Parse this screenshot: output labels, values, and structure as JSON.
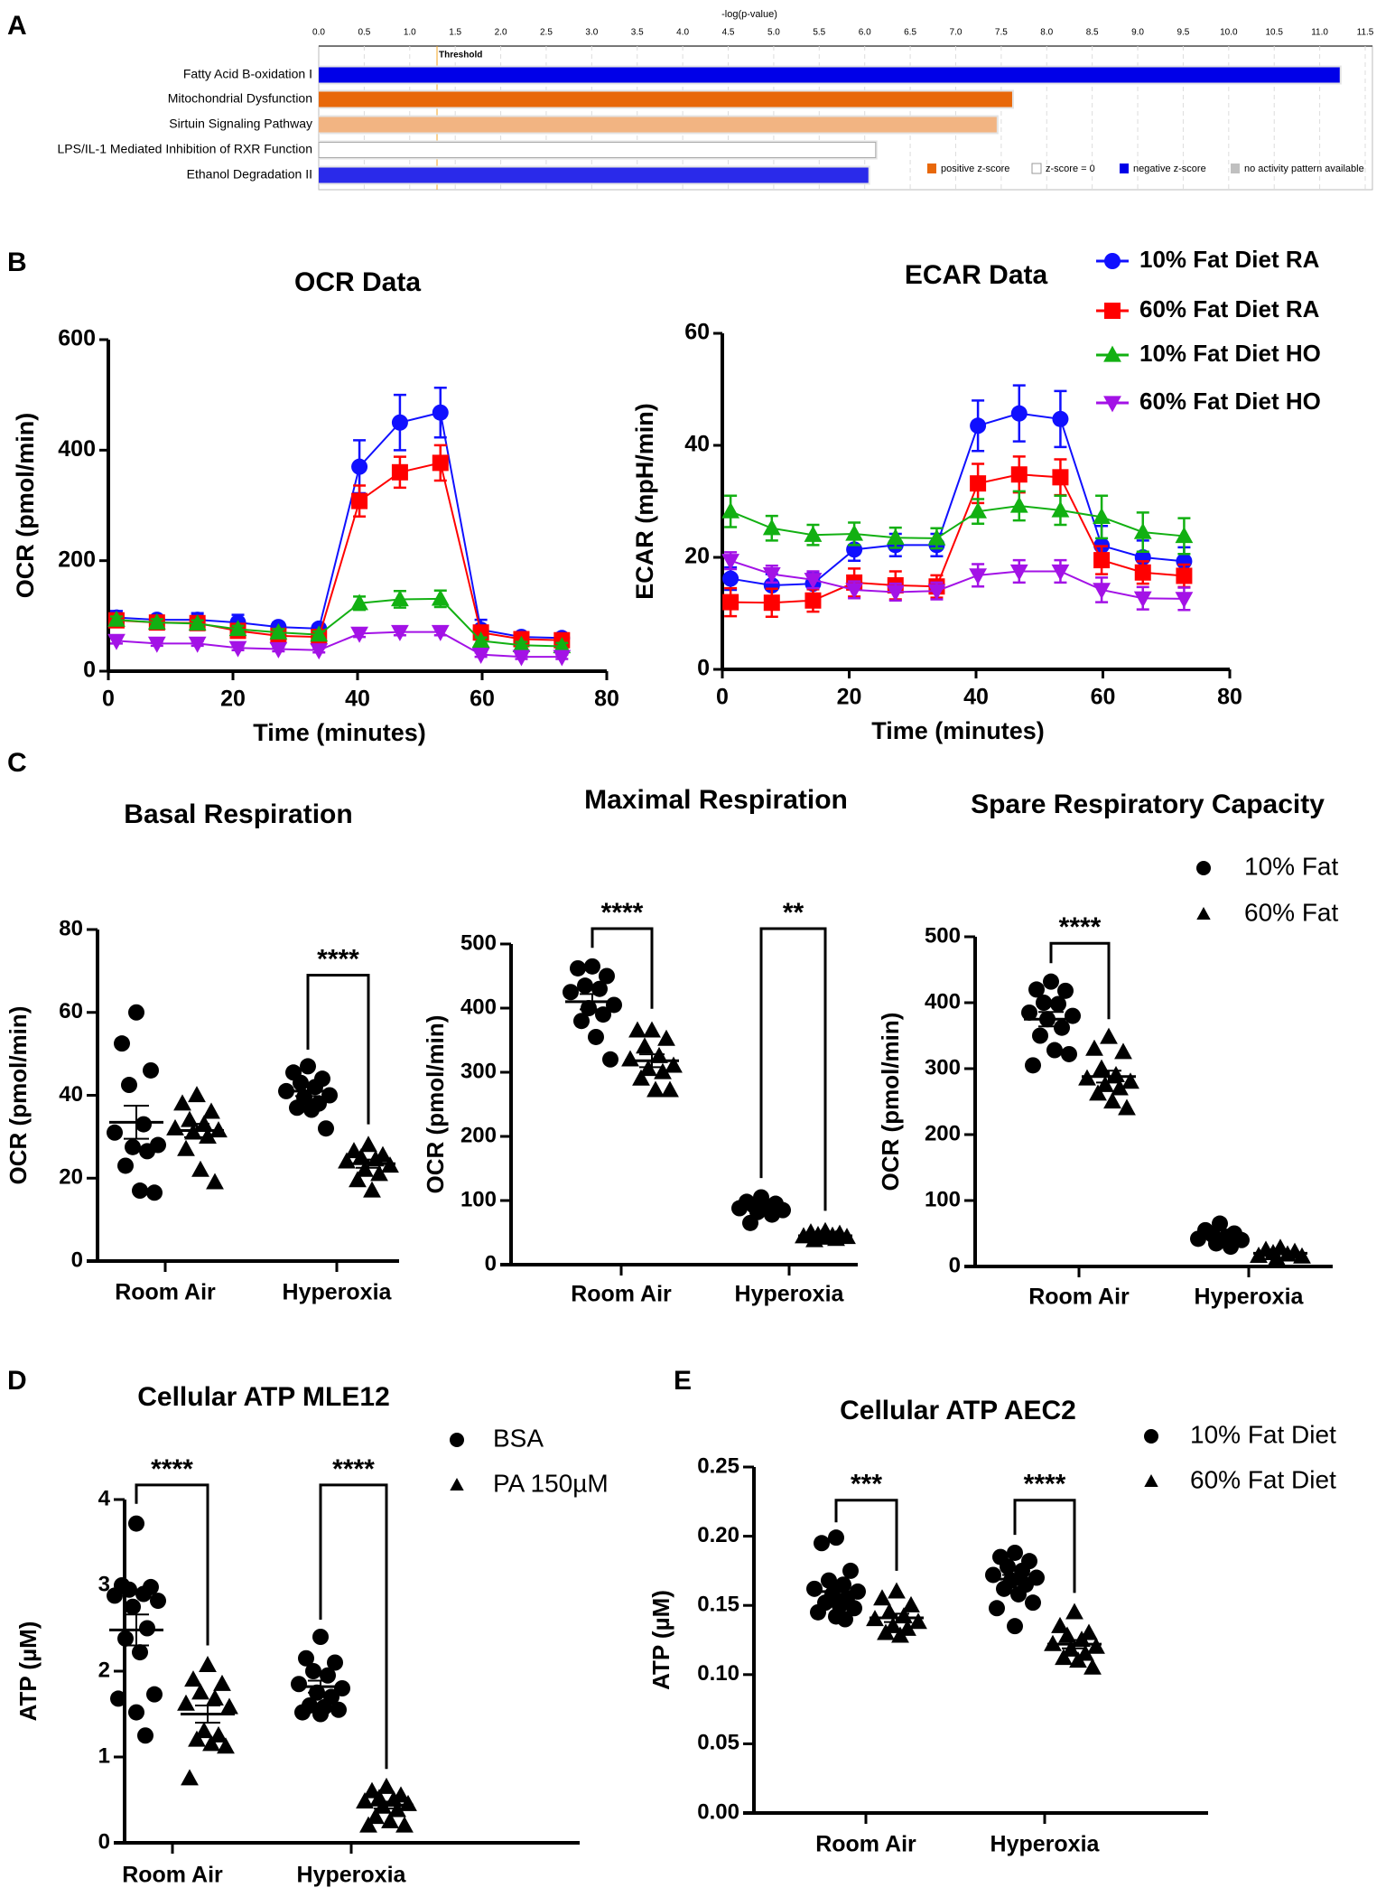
{
  "figure": {
    "panel_labels": [
      "A",
      "B",
      "C",
      "D",
      "E"
    ]
  },
  "chart_data": [
    {
      "id": "A",
      "type": "bar",
      "orientation": "horizontal",
      "xlabel": "-log(p-value)",
      "xlim": [
        0,
        11.5
      ],
      "xticks": [
        "0.0",
        "0.5",
        "1.0",
        "1.5",
        "2.0",
        "2.5",
        "3.0",
        "3.5",
        "4.0",
        "4.5",
        "5.0",
        "5.5",
        "6.0",
        "6.5",
        "7.0",
        "7.5",
        "8.0",
        "8.5",
        "9.0",
        "9.5",
        "10.0",
        "10.5",
        "11.0",
        "11.5"
      ],
      "threshold": {
        "label": "Threshold",
        "value": 1.3,
        "color": "#f5a623"
      },
      "categories": [
        "Fatty Acid B-oxidation I",
        "Mitochondrial Dysfunction",
        "Sirtuin Signaling Pathway",
        "LPS/IL-1 Mediated Inhibition of RXR Function",
        "Ethanol Degradation II"
      ],
      "values": [
        11.22,
        7.62,
        7.45,
        6.12,
        6.04
      ],
      "bar_colors": [
        "#0000e8",
        "#e8680a",
        "#f2b482",
        "#ffffff",
        "#2a2aea"
      ],
      "grid": true,
      "legend": [
        {
          "label": "positive z-score",
          "color": "#e8680a"
        },
        {
          "label": "z-score = 0",
          "color": "#ffffff"
        },
        {
          "label": "negative z-score",
          "color": "#0000e8"
        },
        {
          "label": "no activity pattern available",
          "color": "#c0c0c0"
        }
      ]
    },
    {
      "id": "B-OCR",
      "type": "line",
      "title": "OCR Data",
      "xlabel": "Time (minutes)",
      "ylabel": "OCR (pmol/min)",
      "xlim": [
        0,
        80
      ],
      "ylim": [
        0,
        600
      ],
      "xticks": [
        "0",
        "20",
        "40",
        "60",
        "80"
      ],
      "yticks": [
        "0",
        "200",
        "400",
        "600"
      ],
      "x": [
        1.3,
        7.8,
        14.3,
        20.8,
        27.3,
        33.8,
        40.3,
        46.8,
        53.3,
        59.8,
        66.3,
        72.8
      ],
      "series": [
        {
          "name": "10% Fat Diet RA",
          "color": "#1010ff",
          "marker": "circle",
          "values": [
            97,
            93,
            93,
            88,
            80,
            77,
            370,
            450,
            468,
            75,
            62,
            60
          ],
          "err": [
            12,
            8,
            12,
            14,
            8,
            6,
            48,
            50,
            45,
            18,
            8,
            6
          ]
        },
        {
          "name": "60% Fat Diet RA",
          "color": "#ff0000",
          "marker": "square",
          "values": [
            92,
            88,
            87,
            73,
            64,
            62,
            308,
            360,
            377,
            70,
            58,
            56
          ],
          "err": [
            8,
            6,
            8,
            8,
            8,
            8,
            28,
            28,
            32,
            12,
            6,
            6
          ]
        },
        {
          "name": "10% Fat Diet HO",
          "color": "#12b012",
          "marker": "triangle-up",
          "values": [
            93,
            88,
            86,
            76,
            70,
            66,
            123,
            130,
            131,
            55,
            47,
            45
          ],
          "err": [
            6,
            6,
            6,
            6,
            6,
            6,
            12,
            15,
            15,
            6,
            6,
            6
          ]
        },
        {
          "name": "60% Fat Diet HO",
          "color": "#a312e6",
          "marker": "triangle-down",
          "values": [
            55,
            50,
            50,
            42,
            40,
            38,
            68,
            71,
            71,
            30,
            26,
            26
          ],
          "err": [
            5,
            4,
            4,
            4,
            4,
            4,
            6,
            6,
            6,
            4,
            4,
            4
          ]
        }
      ]
    },
    {
      "id": "B-ECAR",
      "type": "line",
      "title": "ECAR Data",
      "xlabel": "Time (minutes)",
      "ylabel": "ECAR (mpH/min)",
      "xlim": [
        0,
        80
      ],
      "ylim": [
        0,
        60
      ],
      "xticks": [
        "0",
        "20",
        "40",
        "60",
        "80"
      ],
      "yticks": [
        "0",
        "20",
        "40",
        "60"
      ],
      "legend_position": "top-right",
      "x": [
        1.3,
        7.8,
        14.3,
        20.8,
        27.3,
        33.8,
        40.3,
        46.8,
        53.3,
        59.8,
        66.3,
        72.8
      ],
      "series": [
        {
          "name": "10% Fat Diet RA",
          "color": "#1010ff",
          "marker": "circle",
          "values": [
            16.2,
            15.0,
            15.3,
            21.4,
            22.2,
            22.2,
            43.5,
            45.7,
            44.7,
            22.1,
            20.0,
            19.3
          ],
          "err": [
            2,
            2,
            2,
            2,
            2,
            2,
            4.5,
            5,
            5,
            3.5,
            3,
            2.5
          ]
        },
        {
          "name": "60% Fat Diet RA",
          "color": "#ff0000",
          "marker": "square",
          "values": [
            12.0,
            11.9,
            12.3,
            15.5,
            15.0,
            14.8,
            33.2,
            34.8,
            34.3,
            19.5,
            17.3,
            16.7
          ],
          "err": [
            2.5,
            2.5,
            2,
            2.5,
            2.5,
            2,
            3.5,
            3.2,
            3.2,
            2.5,
            2,
            2
          ]
        },
        {
          "name": "10% Fat Diet HO",
          "color": "#12b012",
          "marker": "triangle-up",
          "values": [
            28.2,
            25.2,
            24.0,
            24.2,
            23.5,
            23.4,
            28.2,
            29.2,
            28.4,
            27.2,
            24.5,
            23.8
          ],
          "err": [
            2.8,
            2.2,
            1.8,
            2,
            1.8,
            1.8,
            2.2,
            2.6,
            2.6,
            3.8,
            3.5,
            3.2
          ]
        },
        {
          "name": "60% Fat Diet HO",
          "color": "#a312e6",
          "marker": "triangle-down",
          "values": [
            19.4,
            17.0,
            16.0,
            14.2,
            13.8,
            14.0,
            16.8,
            17.5,
            17.5,
            14.2,
            12.7,
            12.6
          ],
          "err": [
            1.5,
            1.5,
            1.5,
            1.5,
            1.5,
            1.5,
            2,
            2,
            2,
            2.2,
            2,
            2
          ]
        }
      ]
    },
    {
      "id": "C-basal",
      "type": "scatter",
      "title": "Basal Respiration",
      "ylabel": "OCR (pmol/min)",
      "ylim": [
        0,
        80
      ],
      "yticks": [
        "0",
        "20",
        "40",
        "60",
        "80"
      ],
      "categories": [
        "Room Air",
        "Hyperoxia"
      ],
      "show_legend": false,
      "significance": [
        "****"
      ],
      "series": [
        {
          "name": "10% Fat",
          "marker": "circle",
          "groups": [
            {
              "values": [
                60,
                52.5,
                46,
                42.5,
                33,
                31,
                28,
                27.5,
                26.5,
                23,
                17,
                16.5
              ],
              "mean": 33.5,
              "sem": 4
            },
            {
              "values": [
                47,
                45.5,
                44,
                43,
                42,
                41,
                40,
                39.5,
                38,
                37,
                36.5,
                32
              ],
              "mean": 41,
              "sem": 1.2
            }
          ]
        },
        {
          "name": "60% Fat",
          "marker": "triangle",
          "groups": [
            {
              "values": [
                40,
                38,
                36,
                34,
                33,
                32,
                31.5,
                31,
                30,
                27,
                22,
                19
              ],
              "mean": 31.5,
              "sem": 1.6
            },
            {
              "values": [
                28,
                26.5,
                25.5,
                25,
                24.5,
                24,
                23,
                22,
                21,
                19.5,
                17
              ],
              "mean": 23.5,
              "sem": 1
            }
          ]
        }
      ]
    },
    {
      "id": "C-maximal",
      "type": "scatter",
      "title": "Maximal Respiration",
      "ylabel": "OCR (pmol/min)",
      "ylim": [
        0,
        500
      ],
      "yticks": [
        "0",
        "100",
        "200",
        "300",
        "400",
        "500"
      ],
      "categories": [
        "Room Air",
        "Hyperoxia"
      ],
      "show_legend": false,
      "significance": [
        "****",
        "**"
      ],
      "series": [
        {
          "name": "10% Fat",
          "marker": "circle",
          "groups": [
            {
              "values": [
                465,
                462,
                450,
                435,
                430,
                425,
                405,
                400,
                390,
                380,
                355,
                320
              ],
              "mean": 410,
              "sem": 12
            },
            {
              "values": [
                105,
                98,
                95,
                92,
                90,
                88,
                85,
                82,
                78,
                65
              ],
              "mean": 88,
              "sem": 4
            }
          ]
        },
        {
          "name": "60% Fat",
          "marker": "triangle",
          "groups": [
            {
              "values": [
                365,
                365,
                352,
                340,
                325,
                320,
                310,
                305,
                300,
                290,
                272,
                272
              ],
              "mean": 318,
              "sem": 10
            },
            {
              "values": [
                52,
                50,
                48,
                46,
                45,
                44,
                43,
                42,
                40,
                38
              ],
              "mean": 45,
              "sem": 1.5
            }
          ]
        }
      ]
    },
    {
      "id": "C-spare",
      "type": "scatter",
      "title": "Spare Respiratory Capacity",
      "ylabel": "OCR (pmol/min)",
      "ylim": [
        0,
        500
      ],
      "yticks": [
        "0",
        "100",
        "200",
        "300",
        "400",
        "500"
      ],
      "categories": [
        "Room Air",
        "Hyperoxia"
      ],
      "show_legend": true,
      "legend_position": "top-right",
      "significance": [
        "****"
      ],
      "series": [
        {
          "name": "10% Fat",
          "marker": "circle",
          "groups": [
            {
              "values": [
                432,
                420,
                418,
                400,
                398,
                385,
                380,
                375,
                362,
                350,
                328,
                322,
                305
              ],
              "mean": 375,
              "sem": 11
            },
            {
              "values": [
                65,
                55,
                50,
                48,
                45,
                42,
                40,
                35,
                30
              ],
              "mean": 47,
              "sem": 3
            }
          ]
        },
        {
          "name": "60% Fat",
          "marker": "triangle",
          "groups": [
            {
              "values": [
                348,
                330,
                325,
                300,
                290,
                285,
                280,
                275,
                270,
                262,
                250,
                240
              ],
              "mean": 288,
              "sem": 9
            },
            {
              "values": [
                28,
                25,
                22,
                20,
                18,
                16,
                15,
                12
              ],
              "mean": 20,
              "sem": 1.5
            }
          ]
        }
      ]
    },
    {
      "id": "D",
      "type": "scatter",
      "title": "Cellular ATP MLE12",
      "ylabel": "ATP (µM)",
      "ylim": [
        0,
        4
      ],
      "yticks": [
        "0",
        "1",
        "2",
        "3",
        "4"
      ],
      "categories": [
        "Room Air",
        "Hyperoxia"
      ],
      "show_legend": true,
      "legend_position": "top-right",
      "significance": [
        "****",
        "****"
      ],
      "series": [
        {
          "name": "BSA",
          "marker": "circle",
          "groups": [
            {
              "values": [
                3.72,
                3.0,
                2.98,
                2.95,
                2.9,
                2.88,
                2.82,
                2.75,
                2.5,
                2.38,
                2.22,
                1.73,
                1.68,
                1.52,
                1.25
              ],
              "mean": 2.48,
              "sem": 0.18
            },
            {
              "values": [
                2.4,
                2.15,
                2.1,
                2.0,
                1.95,
                1.85,
                1.8,
                1.75,
                1.7,
                1.6,
                1.58,
                1.55,
                1.52,
                1.5
              ],
              "mean": 1.82,
              "sem": 0.07
            }
          ]
        },
        {
          "name": "PA 150µM",
          "marker": "triangle",
          "groups": [
            {
              "values": [
                2.07,
                1.9,
                1.85,
                1.75,
                1.68,
                1.62,
                1.58,
                1.3,
                1.25,
                1.2,
                1.15,
                1.12,
                0.75
              ],
              "mean": 1.5,
              "sem": 0.1
            },
            {
              "values": [
                0.65,
                0.6,
                0.55,
                0.52,
                0.5,
                0.48,
                0.45,
                0.42,
                0.38,
                0.3,
                0.25,
                0.2,
                0.2
              ],
              "mean": 0.44,
              "sem": 0.04
            }
          ]
        }
      ]
    },
    {
      "id": "E",
      "type": "scatter",
      "title": "Cellular ATP AEC2",
      "ylabel": "ATP (µM)",
      "ylim": [
        0,
        0.25
      ],
      "yticks": [
        "0.00",
        "0.05",
        "0.10",
        "0.15",
        "0.20",
        "0.25"
      ],
      "categories": [
        "Room Air",
        "Hyperoxia"
      ],
      "show_legend": true,
      "legend_position": "top-right",
      "significance": [
        "***",
        "****"
      ],
      "series": [
        {
          "name": "10% Fat Diet",
          "marker": "circle",
          "groups": [
            {
              "values": [
                0.199,
                0.195,
                0.175,
                0.168,
                0.165,
                0.162,
                0.16,
                0.158,
                0.155,
                0.152,
                0.15,
                0.148,
                0.145,
                0.142,
                0.14
              ],
              "mean": 0.16,
              "sem": 0.004
            },
            {
              "values": [
                0.188,
                0.185,
                0.182,
                0.178,
                0.175,
                0.172,
                0.17,
                0.168,
                0.165,
                0.162,
                0.158,
                0.152,
                0.148,
                0.135
              ],
              "mean": 0.169,
              "sem": 0.003
            }
          ]
        },
        {
          "name": "60% Fat Diet",
          "marker": "triangle",
          "groups": [
            {
              "values": [
                0.16,
                0.155,
                0.15,
                0.145,
                0.142,
                0.14,
                0.138,
                0.135,
                0.133,
                0.13,
                0.128
              ],
              "mean": 0.141,
              "sem": 0.003
            },
            {
              "values": [
                0.145,
                0.135,
                0.13,
                0.128,
                0.125,
                0.122,
                0.12,
                0.118,
                0.115,
                0.112,
                0.11,
                0.105
              ],
              "mean": 0.122,
              "sem": 0.003
            }
          ]
        }
      ]
    }
  ]
}
